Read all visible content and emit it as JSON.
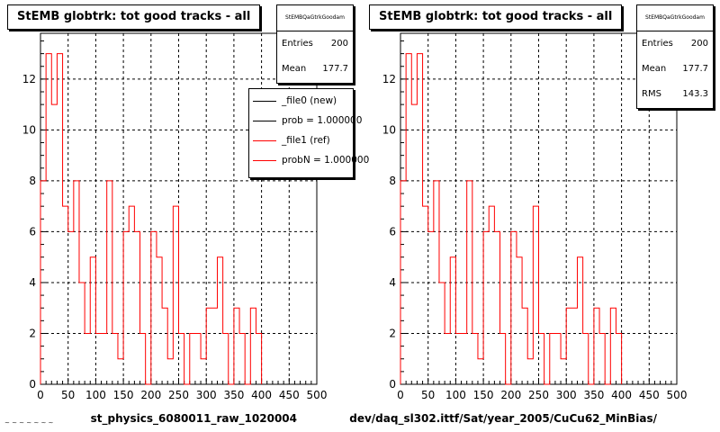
{
  "chart_data": [
    {
      "type": "histogram",
      "title": "StEMB globtrk: tot good tracks - all",
      "xlabel": "st_physics_6080011_raw_1020004",
      "ylabel": "",
      "xlim": [
        0,
        500
      ],
      "ylim": [
        0,
        13.8
      ],
      "grid": true,
      "x_ticks": [
        0,
        50,
        100,
        150,
        200,
        250,
        300,
        350,
        400,
        450,
        500
      ],
      "y_ticks": [
        0,
        2,
        4,
        6,
        8,
        10,
        12
      ],
      "bin_width": 10,
      "series": [
        {
          "name": "_file1 (ref)",
          "color": "#ff0000",
          "bin_edges_start": 0,
          "values": [
            8,
            13,
            11,
            13,
            7,
            6,
            8,
            4,
            2,
            5,
            2,
            2,
            8,
            2,
            1,
            6,
            7,
            6,
            2,
            0,
            6,
            5,
            3,
            1,
            7,
            2,
            0,
            2,
            2,
            1,
            3,
            3,
            5,
            2,
            0,
            3,
            2,
            0,
            3,
            2
          ]
        }
      ],
      "stats": {
        "name": "StEMBQaGtrkGoodam",
        "entries_label": "Entries",
        "entries": "200",
        "mean_label": "Mean",
        "mean": "177.7"
      },
      "legend": {
        "placement": "top-right",
        "entries": [
          {
            "label": "_file0 (new)",
            "color": "#000000"
          },
          {
            "label": "prob = 1.000000",
            "color": "#000000"
          },
          {
            "label": "_file1 (ref)",
            "color": "#ff0000"
          },
          {
            "label": "probN = 1.000000",
            "color": "#ff0000"
          }
        ]
      }
    },
    {
      "type": "histogram",
      "title": "StEMB globtrk: tot good tracks - all",
      "xlabel": "dev/daq_sl302.ittf/Sat/year_2005/CuCu62_MinBias/",
      "ylabel": "",
      "xlim": [
        0,
        500
      ],
      "ylim": [
        0,
        13.8
      ],
      "grid": true,
      "x_ticks": [
        0,
        50,
        100,
        150,
        200,
        250,
        300,
        350,
        400,
        450,
        500
      ],
      "y_ticks": [
        0,
        2,
        4,
        6,
        8,
        10,
        12
      ],
      "bin_width": 10,
      "series": [
        {
          "color": "#ff0000",
          "bin_edges_start": 0,
          "values": [
            8,
            13,
            11,
            13,
            7,
            6,
            8,
            4,
            2,
            5,
            2,
            2,
            8,
            2,
            1,
            6,
            7,
            6,
            2,
            0,
            6,
            5,
            3,
            1,
            7,
            2,
            0,
            2,
            2,
            1,
            3,
            3,
            5,
            2,
            0,
            3,
            2,
            0,
            3,
            2
          ]
        }
      ],
      "stats": {
        "name": "StEMBQaGtrkGoodam",
        "entries_label": "Entries",
        "entries": "200",
        "mean_label": "Mean",
        "mean": "177.7",
        "rms_label": "RMS",
        "rms": "143.3"
      }
    }
  ],
  "footer_note": "~ ~ ~ ~ ~ ~ ~"
}
